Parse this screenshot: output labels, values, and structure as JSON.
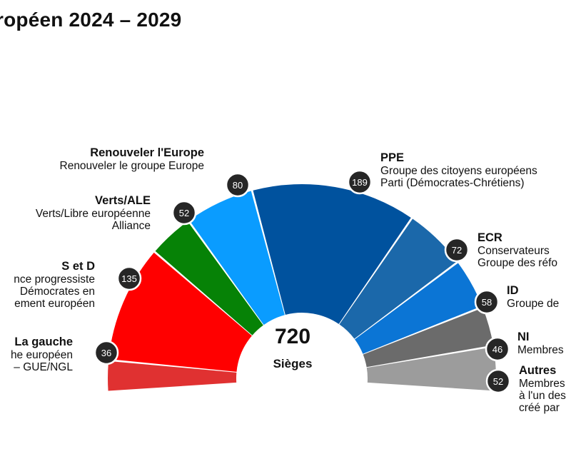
{
  "title": "ropéen 2024 – 2029",
  "chart_data": {
    "type": "parliament",
    "total_value": "720",
    "total_label": "Sièges",
    "groups": [
      {
        "id": "gauche",
        "name": "La gauche",
        "desc": [
          "he européen",
          "– GUE/NGL"
        ],
        "seats": 36,
        "color": "#e03131"
      },
      {
        "id": "sd",
        "name": "S et D",
        "desc": [
          "nce progressiste",
          "Démocrates en",
          "ement européen"
        ],
        "seats": 135,
        "color": "#ff0000"
      },
      {
        "id": "verts",
        "name": "Verts/ALE",
        "desc": [
          "Verts/Libre européenne",
          "Alliance"
        ],
        "seats": 52,
        "color": "#068206"
      },
      {
        "id": "renew",
        "name": "Renouveler l'Europe",
        "desc": [
          "Renouveler le groupe Europe"
        ],
        "seats": 80,
        "color": "#0a9cff"
      },
      {
        "id": "ppe",
        "name": "PPE",
        "desc": [
          "Groupe des citoyens européens",
          "Parti (Démocrates-Chrétiens)"
        ],
        "seats": 189,
        "color": "#00529e"
      },
      {
        "id": "ecr",
        "name": "ECR",
        "desc": [
          "Conservateurs",
          "Groupe des réfo"
        ],
        "seats": 72,
        "color": "#1b68aa"
      },
      {
        "id": "id",
        "name": "ID",
        "desc": [
          "Groupe de"
        ],
        "seats": 58,
        "color": "#0b75d5"
      },
      {
        "id": "ni",
        "name": "NI",
        "desc": [
          "Membres"
        ],
        "seats": 46,
        "color": "#6b6b6b"
      },
      {
        "id": "autres",
        "name": "Autres",
        "desc": [
          "Membres",
          "à l'un des",
          "créé par"
        ],
        "seats": 52,
        "color": "#9c9c9c"
      }
    ]
  }
}
